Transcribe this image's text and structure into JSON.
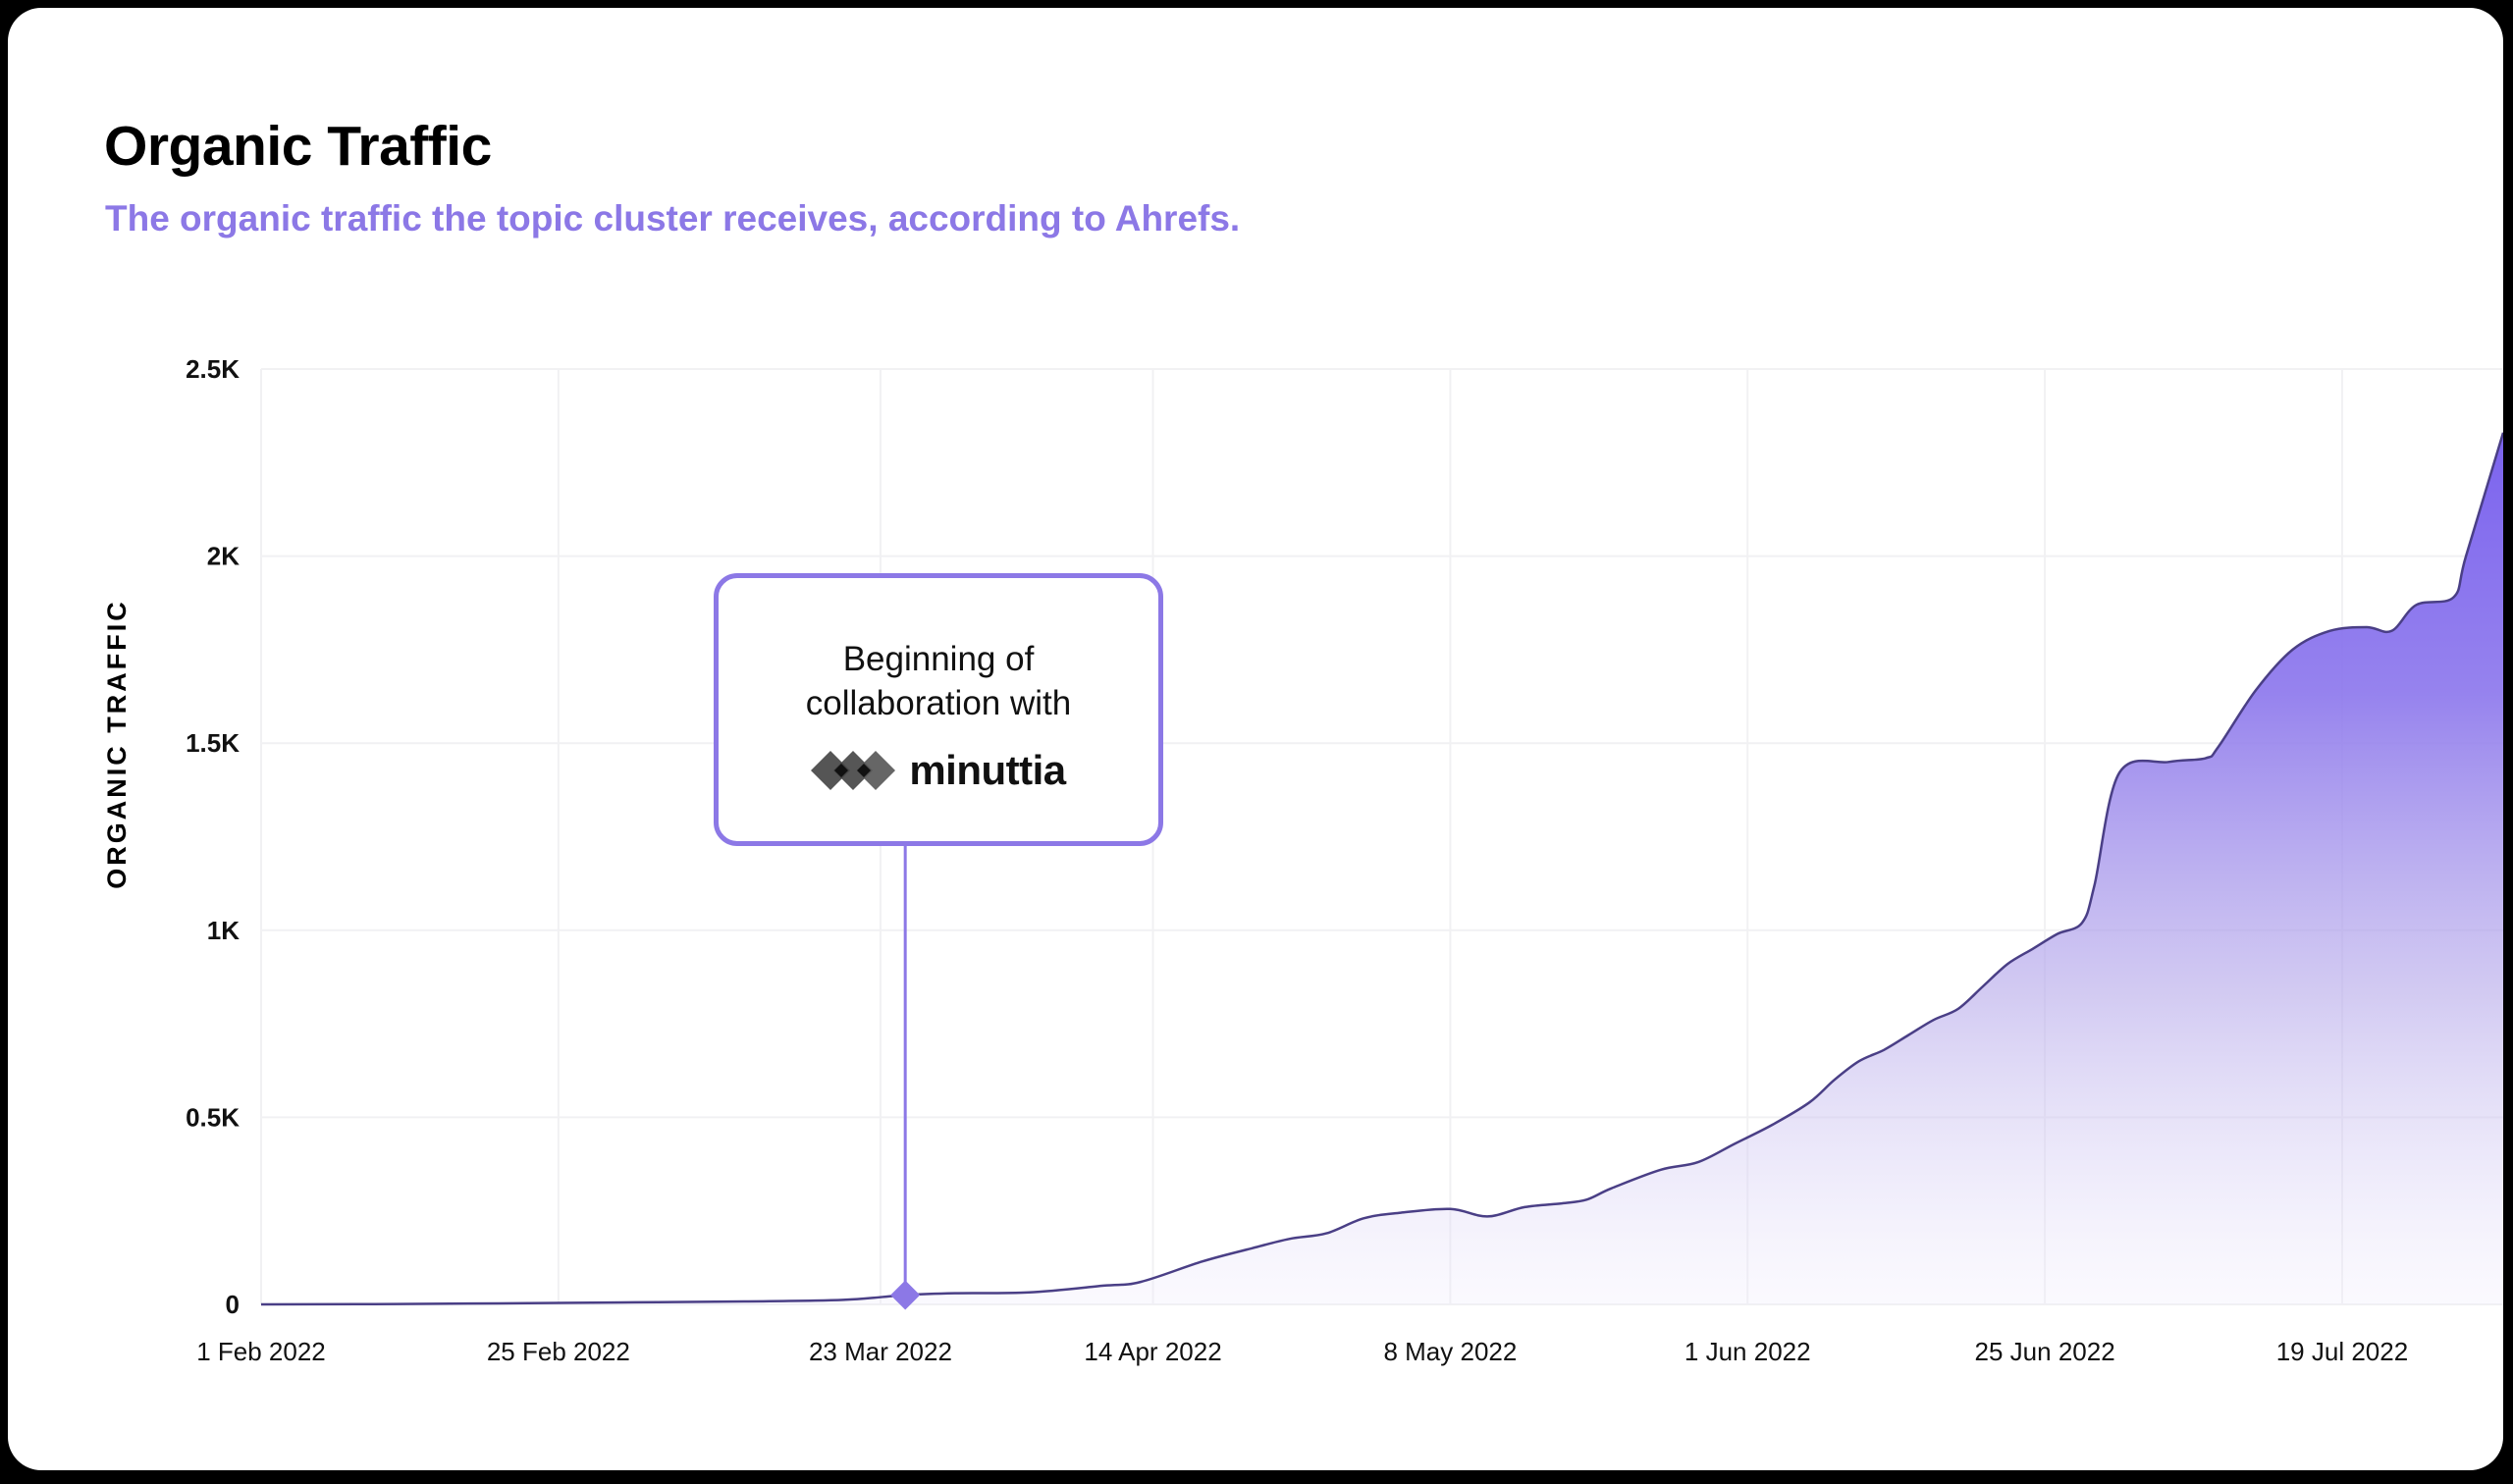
{
  "title": "Organic Traffic",
  "subtitle": "The organic traffic the topic cluster receives, according to Ahrefs.",
  "callout": {
    "text": "Beginning of\ncollaboration with",
    "brand": "minuttia",
    "date": "2022-03-25"
  },
  "colors": {
    "accent": "#8c78e6",
    "fill_top": "#7f68ee",
    "line": "#4a3f86",
    "text": "#111111"
  },
  "chart_data": {
    "type": "area",
    "title": "Organic Traffic",
    "subtitle": "The organic traffic the topic cluster receives, according to Ahrefs.",
    "xlabel": "",
    "ylabel": "ORGANIC TRAFFIC",
    "ylim": [
      0,
      2500
    ],
    "xlim": [
      "2022-02-01",
      "2022-08-01"
    ],
    "grid": true,
    "legend": "none",
    "y_ticks": [
      {
        "value": 0,
        "label": "0"
      },
      {
        "value": 500,
        "label": "0.5K"
      },
      {
        "value": 1000,
        "label": "1K"
      },
      {
        "value": 1500,
        "label": "1.5K"
      },
      {
        "value": 2000,
        "label": "2K"
      },
      {
        "value": 2500,
        "label": "2.5K"
      }
    ],
    "x_ticks": [
      {
        "date": "2022-02-01",
        "label": "1 Feb 2022"
      },
      {
        "date": "2022-02-25",
        "label": "25 Feb 2022"
      },
      {
        "date": "2022-03-23",
        "label": "23 Mar 2022"
      },
      {
        "date": "2022-04-14",
        "label": "14 Apr 2022"
      },
      {
        "date": "2022-05-08",
        "label": "8 May 2022"
      },
      {
        "date": "2022-06-01",
        "label": "1 Jun 2022"
      },
      {
        "date": "2022-06-25",
        "label": "25 Jun 2022"
      },
      {
        "date": "2022-07-19",
        "label": "19 Jul 2022"
      }
    ],
    "annotation": {
      "date": "2022-03-25",
      "value": 25,
      "label": "Beginning of collaboration with minuttia"
    },
    "series": [
      {
        "x": [
          "2022-02-01",
          "2022-02-12",
          "2022-02-25",
          "2022-03-05",
          "2022-03-12",
          "2022-03-20",
          "2022-03-25",
          "2022-03-29",
          "2022-04-04",
          "2022-04-10",
          "2022-04-13",
          "2022-04-18",
          "2022-04-22",
          "2022-04-25",
          "2022-04-28",
          "2022-05-01",
          "2022-05-04",
          "2022-05-08",
          "2022-05-11",
          "2022-05-14",
          "2022-05-17",
          "2022-05-19",
          "2022-05-21",
          "2022-05-25",
          "2022-05-28",
          "2022-05-31",
          "2022-06-03",
          "2022-06-06",
          "2022-06-08",
          "2022-06-10",
          "2022-06-12",
          "2022-06-14",
          "2022-06-16",
          "2022-06-18",
          "2022-06-20",
          "2022-06-22",
          "2022-06-24",
          "2022-06-26",
          "2022-06-28",
          "2022-06-29",
          "2022-07-01",
          "2022-07-05",
          "2022-07-08",
          "2022-07-09",
          "2022-07-12",
          "2022-07-15",
          "2022-07-18",
          "2022-07-21",
          "2022-07-23",
          "2022-07-25",
          "2022-07-28",
          "2022-07-29",
          "2022-08-01"
        ],
        "values": [
          0,
          1,
          4,
          6,
          8,
          12,
          25,
          30,
          32,
          50,
          60,
          115,
          150,
          175,
          190,
          230,
          245,
          255,
          235,
          260,
          270,
          280,
          310,
          360,
          380,
          430,
          480,
          540,
          600,
          650,
          680,
          720,
          760,
          790,
          850,
          910,
          950,
          990,
          1020,
          1120,
          1420,
          1450,
          1460,
          1490,
          1640,
          1750,
          1800,
          1810,
          1800,
          1870,
          1890,
          2000,
          2330
        ]
      }
    ]
  }
}
